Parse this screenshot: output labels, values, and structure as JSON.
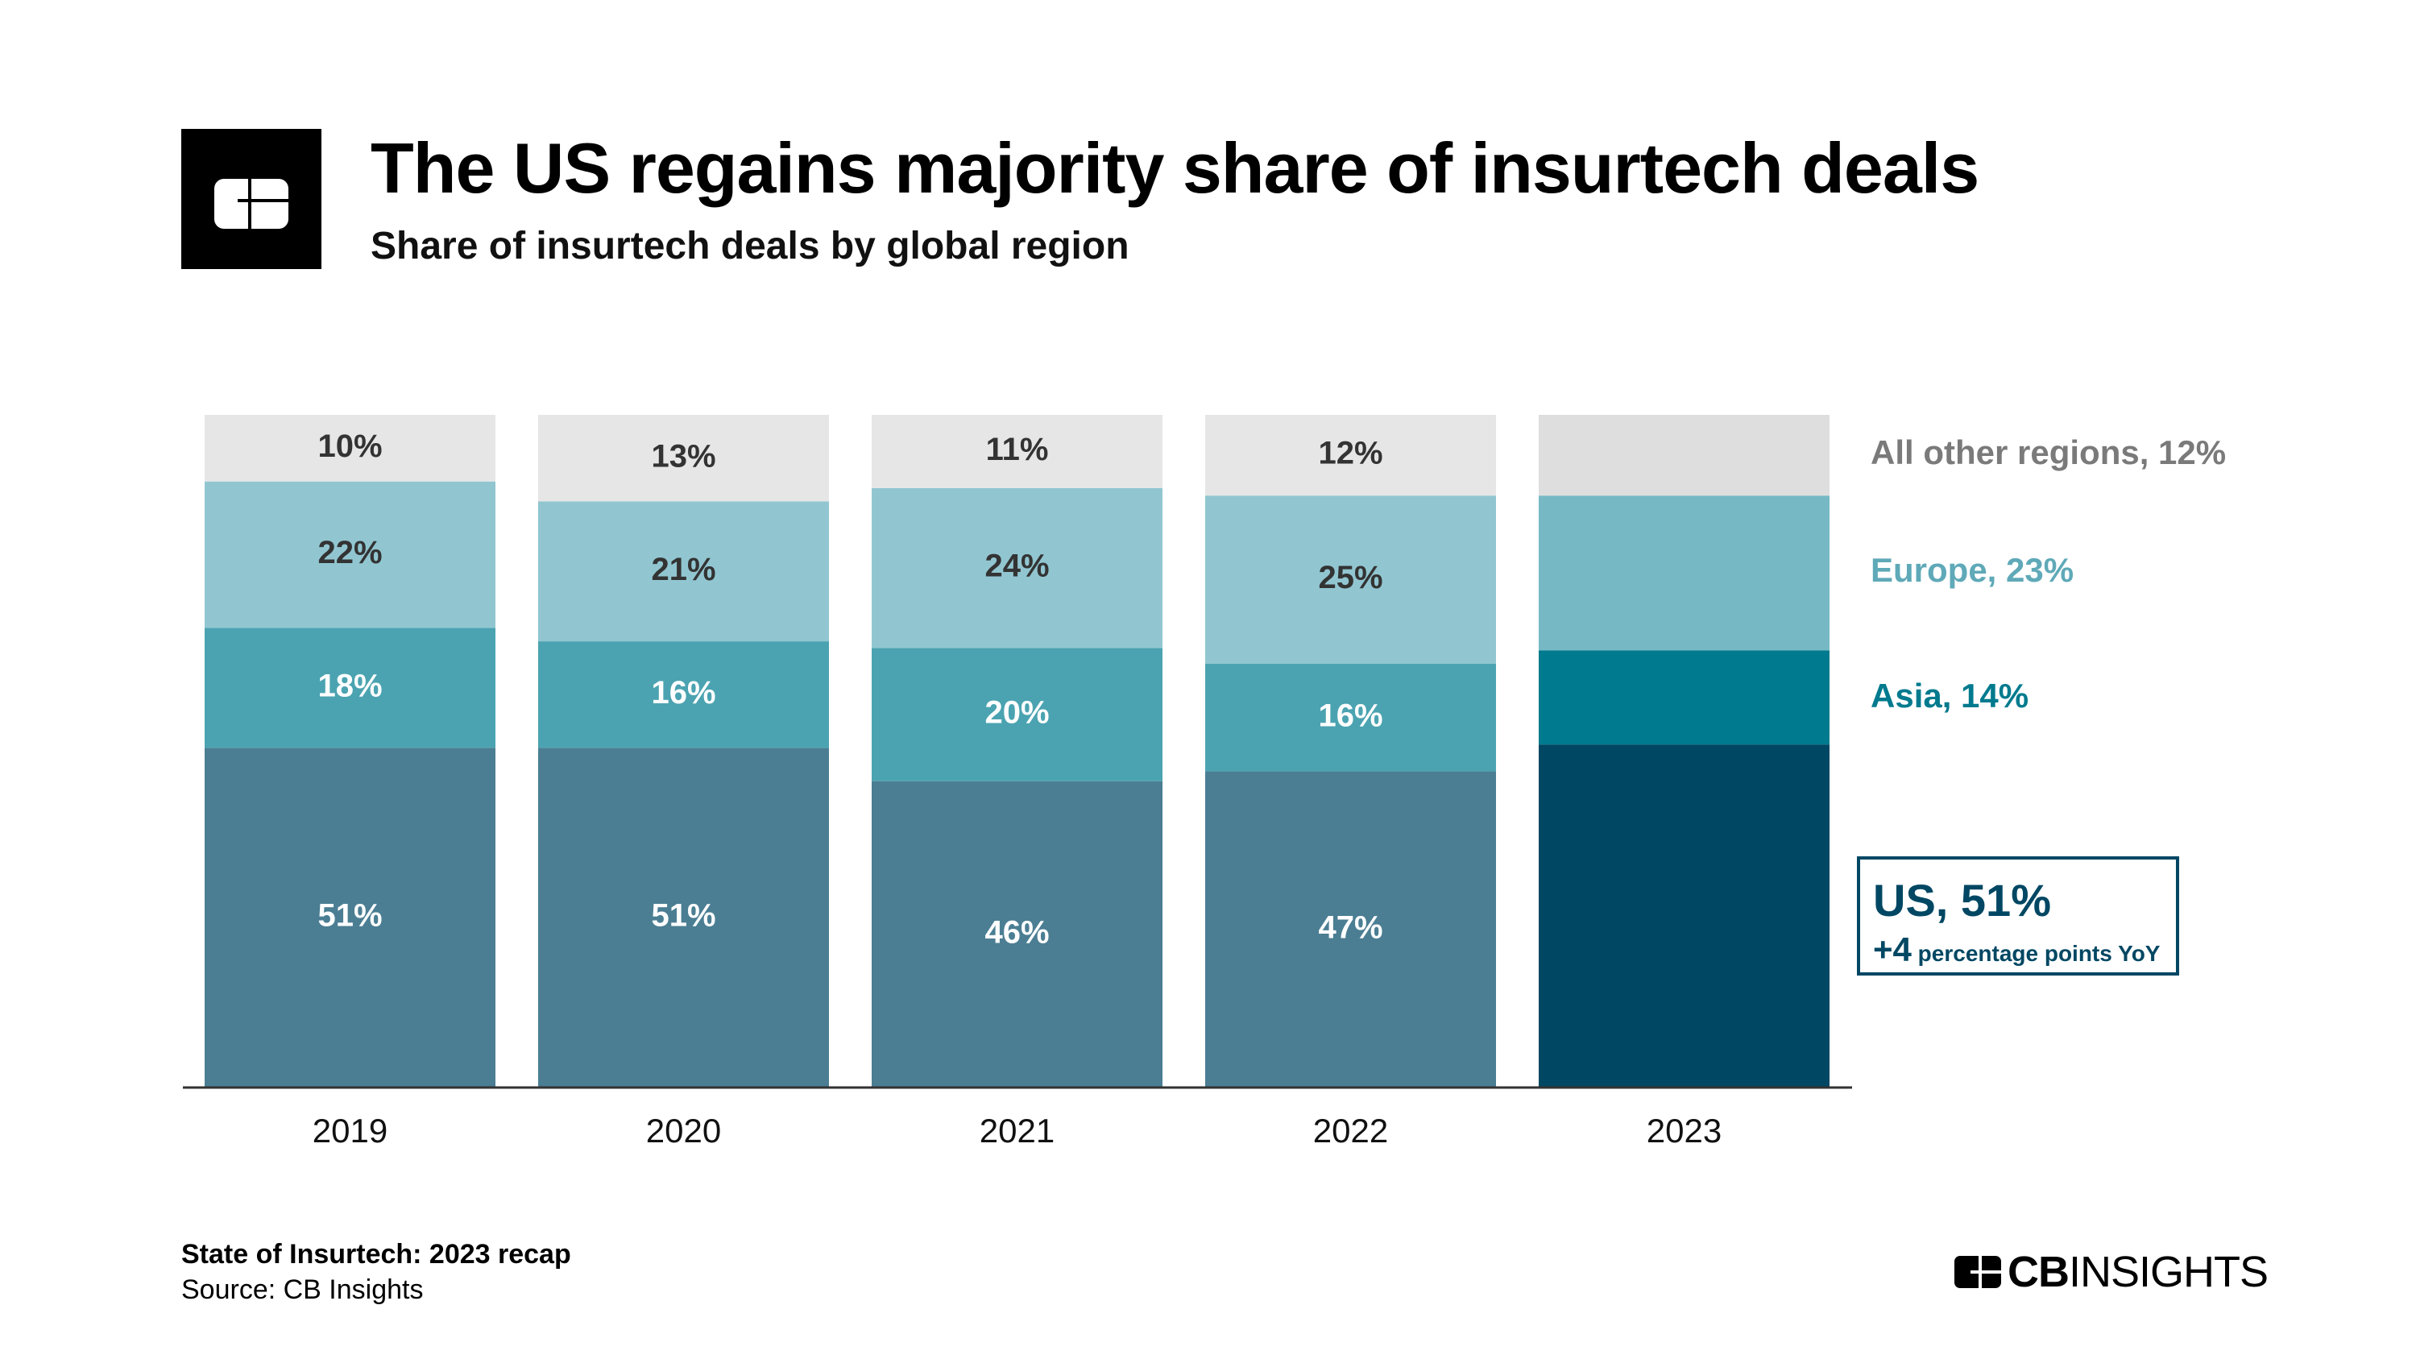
{
  "header": {
    "logo_icon": "cb-insights-logo-icon",
    "title": "The US regains majority share of insurtech deals",
    "subtitle": "Share of insurtech deals by global region"
  },
  "chart_data": {
    "type": "bar",
    "stacked": true,
    "title": "The US regains majority share of insurtech deals",
    "subtitle": "Share of insurtech deals by global region",
    "categories": [
      "2019",
      "2020",
      "2021",
      "2022",
      "2023"
    ],
    "unit": "%",
    "series": [
      {
        "name": "US",
        "values": [
          51,
          51,
          46,
          47,
          51
        ],
        "color": "#4b7e93",
        "highlight_color": "#004763",
        "label_color": "#ffffff"
      },
      {
        "name": "Asia",
        "values": [
          18,
          16,
          20,
          16,
          14
        ],
        "color": "#4ba3b1",
        "highlight_color": "#007a8e",
        "label_color": "#ffffff"
      },
      {
        "name": "Europe",
        "values": [
          22,
          21,
          24,
          25,
          23
        ],
        "color": "#91c6d1",
        "highlight_color": "#76b9c4",
        "label_color": "#333333"
      },
      {
        "name": "All other regions",
        "values": [
          10,
          13,
          11,
          12,
          12
        ],
        "color": "#e6e6e6",
        "highlight_color": "#dedede",
        "label_color": "#333333"
      }
    ],
    "data_labels": [
      [
        "51%",
        "51%",
        "46%",
        "47%",
        ""
      ],
      [
        "18%",
        "16%",
        "20%",
        "16%",
        ""
      ],
      [
        "22%",
        "21%",
        "24%",
        "25%",
        ""
      ],
      [
        "10%",
        "13%",
        "11%",
        "12%",
        ""
      ]
    ],
    "ylim": [
      0,
      100
    ],
    "grid": false,
    "legend_placement": "right",
    "legend": {
      "other": {
        "text": "All other regions, 12%",
        "color": "#7a7a7a"
      },
      "europe": {
        "text": "Europe, 23%",
        "color": "#5fa9b8"
      },
      "asia": {
        "text": "Asia, 14%",
        "color": "#007a8e"
      },
      "us": {
        "text": "US, 51%",
        "delta": "+4",
        "delta_text": "percentage points YoY",
        "color": "#004763"
      }
    }
  },
  "footer": {
    "report": "State of Insurtech: 2023 recap",
    "source": "Source: CB Insights",
    "brand_bold": "CB",
    "brand_light": "INSIGHTS"
  }
}
